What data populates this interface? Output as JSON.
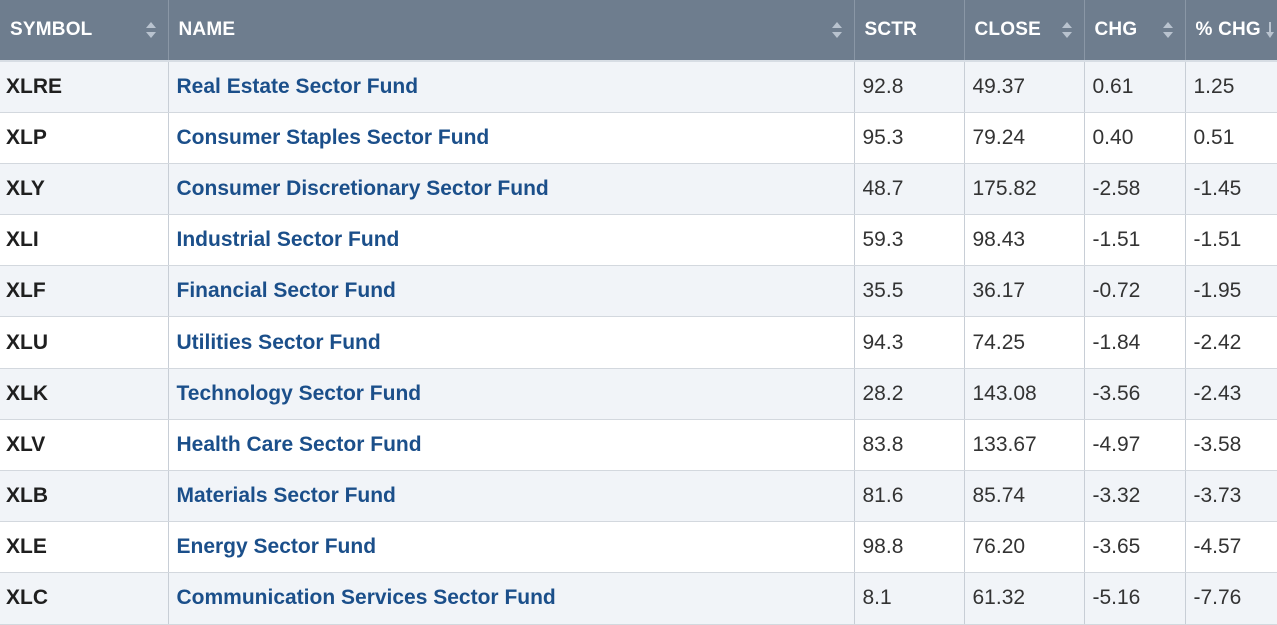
{
  "columns": [
    {
      "key": "symbol",
      "label": "SYMBOL",
      "sort_icon": "sort-both-icon"
    },
    {
      "key": "name",
      "label": "NAME",
      "sort_icon": "sort-both-icon"
    },
    {
      "key": "sctr",
      "label": "SCTR",
      "sort_icon": ""
    },
    {
      "key": "close",
      "label": "CLOSE",
      "sort_icon": "sort-both-icon"
    },
    {
      "key": "chg",
      "label": "CHG",
      "sort_icon": "sort-both-icon"
    },
    {
      "key": "pct_chg",
      "label": "% CHG",
      "sort_icon": "sort-down-icon"
    }
  ],
  "rows": [
    {
      "symbol": "XLRE",
      "name": "Real Estate Sector Fund",
      "sctr": "92.8",
      "close": "49.37",
      "chg": "0.61",
      "pct_chg": "1.25"
    },
    {
      "symbol": "XLP",
      "name": "Consumer Staples Sector Fund",
      "sctr": "95.3",
      "close": "79.24",
      "chg": "0.40",
      "pct_chg": "0.51"
    },
    {
      "symbol": "XLY",
      "name": "Consumer Discretionary Sector Fund",
      "sctr": "48.7",
      "close": "175.82",
      "chg": "-2.58",
      "pct_chg": "-1.45"
    },
    {
      "symbol": "XLI",
      "name": "Industrial Sector Fund",
      "sctr": "59.3",
      "close": "98.43",
      "chg": "-1.51",
      "pct_chg": "-1.51"
    },
    {
      "symbol": "XLF",
      "name": "Financial Sector Fund",
      "sctr": "35.5",
      "close": "36.17",
      "chg": "-0.72",
      "pct_chg": "-1.95"
    },
    {
      "symbol": "XLU",
      "name": "Utilities Sector Fund",
      "sctr": "94.3",
      "close": "74.25",
      "chg": "-1.84",
      "pct_chg": "-2.42"
    },
    {
      "symbol": "XLK",
      "name": "Technology Sector Fund",
      "sctr": "28.2",
      "close": "143.08",
      "chg": "-3.56",
      "pct_chg": "-2.43"
    },
    {
      "symbol": "XLV",
      "name": "Health Care Sector Fund",
      "sctr": "83.8",
      "close": "133.67",
      "chg": "-4.97",
      "pct_chg": "-3.58"
    },
    {
      "symbol": "XLB",
      "name": "Materials Sector Fund",
      "sctr": "81.6",
      "close": "85.74",
      "chg": "-3.32",
      "pct_chg": "-3.73"
    },
    {
      "symbol": "XLE",
      "name": "Energy Sector Fund",
      "sctr": "98.8",
      "close": "76.20",
      "chg": "-3.65",
      "pct_chg": "-4.57"
    },
    {
      "symbol": "XLC",
      "name": "Communication Services Sector Fund",
      "sctr": "8.1",
      "close": "61.32",
      "chg": "-5.16",
      "pct_chg": "-7.76"
    }
  ],
  "colors": {
    "header_bg": "#6e7d8e",
    "header_text": "#ffffff",
    "link": "#1b4f8a",
    "row_alt": "#f1f4f8"
  }
}
